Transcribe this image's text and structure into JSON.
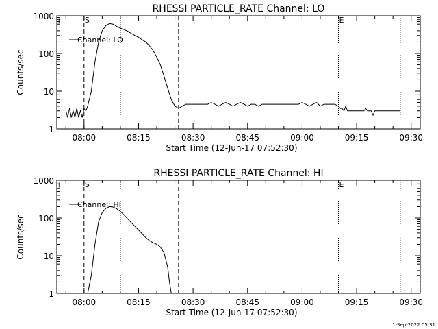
{
  "colors": {
    "background": "#ffffff",
    "ink": "#000000"
  },
  "footer": {
    "date_stamp": "1-Sep-2022 05:31"
  },
  "chart_data": [
    {
      "type": "line",
      "title": "RHESSI PARTICLE_RATE Channel: LO",
      "xlabel": "Start Time (12-Jun-17 07:52:30)",
      "ylabel": "Counts/sec",
      "y_scale": "log",
      "ylim": [
        1,
        1000
      ],
      "y_ticks": [
        1,
        10,
        100,
        1000
      ],
      "y_tick_labels": [
        "1",
        "10",
        "100",
        "1000"
      ],
      "x_range": [
        "07:52:30",
        "09:32:30"
      ],
      "x_ticks": [
        "08:00",
        "08:15",
        "08:30",
        "08:45",
        "09:00",
        "09:15",
        "09:30"
      ],
      "legend": {
        "label": "Channel: LO",
        "placement": "top-left"
      },
      "markers": [
        {
          "time": "08:00:00",
          "style": "dashed",
          "label": "S"
        },
        {
          "time": "08:10:00",
          "style": "dotted",
          "label": ""
        },
        {
          "time": "08:26:00",
          "style": "dashed",
          "label": ""
        },
        {
          "time": "09:10:00",
          "style": "dotted",
          "label": "E"
        },
        {
          "time": "09:27:00",
          "style": "dotted",
          "label": ""
        }
      ],
      "series": [
        {
          "name": "Channel: LO",
          "points": [
            [
              "07:55:00",
              3
            ],
            [
              "07:55:30",
              2
            ],
            [
              "07:56:00",
              3.5
            ],
            [
              "07:56:30",
              2
            ],
            [
              "07:57:00",
              3
            ],
            [
              "07:57:30",
              2
            ],
            [
              "07:58:00",
              3.5
            ],
            [
              "07:58:30",
              2
            ],
            [
              "07:59:00",
              3
            ],
            [
              "07:59:30",
              2
            ],
            [
              "08:00:00",
              3.5
            ],
            [
              "08:00:30",
              3
            ],
            [
              "08:01:00",
              4
            ],
            [
              "08:02:00",
              10
            ],
            [
              "08:03:00",
              60
            ],
            [
              "08:04:00",
              200
            ],
            [
              "08:05:00",
              400
            ],
            [
              "08:06:00",
              550
            ],
            [
              "08:07:00",
              620
            ],
            [
              "08:08:00",
              600
            ],
            [
              "08:09:00",
              520
            ],
            [
              "08:10:00",
              470
            ],
            [
              "08:11:00",
              430
            ],
            [
              "08:12:00",
              390
            ],
            [
              "08:13:00",
              340
            ],
            [
              "08:14:00",
              300
            ],
            [
              "08:15:00",
              270
            ],
            [
              "08:16:00",
              230
            ],
            [
              "08:17:00",
              200
            ],
            [
              "08:18:00",
              160
            ],
            [
              "08:19:00",
              120
            ],
            [
              "08:20:00",
              80
            ],
            [
              "08:21:00",
              50
            ],
            [
              "08:22:00",
              25
            ],
            [
              "08:23:00",
              12
            ],
            [
              "08:24:00",
              6
            ],
            [
              "08:25:00",
              4
            ],
            [
              "08:26:00",
              3.5
            ],
            [
              "08:27:00",
              4
            ],
            [
              "08:28:00",
              4.5
            ],
            [
              "08:30:00",
              4.5
            ],
            [
              "08:31:00",
              4.5
            ],
            [
              "08:32:00",
              4.5
            ],
            [
              "08:33:00",
              4.5
            ],
            [
              "08:34:00",
              4.5
            ],
            [
              "08:35:00",
              5
            ],
            [
              "08:36:00",
              4.5
            ],
            [
              "08:37:00",
              4
            ],
            [
              "08:38:00",
              4.5
            ],
            [
              "08:39:00",
              5
            ],
            [
              "08:40:00",
              4.5
            ],
            [
              "08:41:00",
              4
            ],
            [
              "08:42:00",
              4.5
            ],
            [
              "08:43:00",
              5
            ],
            [
              "08:44:00",
              4.5
            ],
            [
              "08:45:00",
              4
            ],
            [
              "08:46:00",
              4.5
            ],
            [
              "08:47:00",
              4.5
            ],
            [
              "08:48:00",
              4
            ],
            [
              "08:49:00",
              4.5
            ],
            [
              "08:50:00",
              4.5
            ],
            [
              "08:51:00",
              4.5
            ],
            [
              "08:52:00",
              4.5
            ],
            [
              "08:53:00",
              4.5
            ],
            [
              "08:54:00",
              4.5
            ],
            [
              "08:55:00",
              4.5
            ],
            [
              "08:56:00",
              4.5
            ],
            [
              "08:57:00",
              4.5
            ],
            [
              "08:58:00",
              4.5
            ],
            [
              "08:59:00",
              4.5
            ],
            [
              "09:00:00",
              5
            ],
            [
              "09:01:00",
              4.5
            ],
            [
              "09:02:00",
              4
            ],
            [
              "09:03:00",
              4.5
            ],
            [
              "09:04:00",
              5
            ],
            [
              "09:05:00",
              4
            ],
            [
              "09:06:00",
              4.5
            ],
            [
              "09:07:00",
              4.5
            ],
            [
              "09:08:00",
              4.5
            ],
            [
              "09:09:00",
              4.5
            ],
            [
              "09:10:00",
              4
            ],
            [
              "09:10:30",
              3.5
            ],
            [
              "09:11:00",
              3.5
            ],
            [
              "09:11:30",
              3
            ],
            [
              "09:12:00",
              4
            ],
            [
              "09:12:30",
              3
            ],
            [
              "09:13:00",
              3
            ],
            [
              "09:14:00",
              3
            ],
            [
              "09:15:00",
              3
            ],
            [
              "09:16:00",
              3
            ],
            [
              "09:17:00",
              3
            ],
            [
              "09:17:30",
              3.5
            ],
            [
              "09:18:00",
              3
            ],
            [
              "09:19:00",
              3
            ],
            [
              "09:19:30",
              2.3
            ],
            [
              "09:20:00",
              3
            ],
            [
              "09:21:00",
              3
            ],
            [
              "09:22:00",
              3
            ],
            [
              "09:23:00",
              3
            ],
            [
              "09:24:00",
              3
            ],
            [
              "09:25:00",
              3
            ],
            [
              "09:26:00",
              3
            ],
            [
              "09:27:00",
              3
            ]
          ]
        }
      ]
    },
    {
      "type": "line",
      "title": "RHESSI PARTICLE_RATE Channel: HI",
      "xlabel": "Start Time (12-Jun-17 07:52:30)",
      "ylabel": "Counts/sec",
      "y_scale": "log",
      "ylim": [
        1,
        1000
      ],
      "y_ticks": [
        1,
        10,
        100,
        1000
      ],
      "y_tick_labels": [
        "1",
        "10",
        "100",
        "1000"
      ],
      "x_range": [
        "07:52:30",
        "09:32:30"
      ],
      "x_ticks": [
        "08:00",
        "08:15",
        "08:30",
        "08:45",
        "09:00",
        "09:15",
        "09:30"
      ],
      "legend": {
        "label": "Channel: HI",
        "placement": "top-left"
      },
      "markers": [
        {
          "time": "08:00:00",
          "style": "dashed",
          "label": "S"
        },
        {
          "time": "08:10:00",
          "style": "dotted",
          "label": ""
        },
        {
          "time": "08:26:00",
          "style": "dashed",
          "label": ""
        },
        {
          "time": "09:10:00",
          "style": "dotted",
          "label": "E"
        },
        {
          "time": "09:27:00",
          "style": "dotted",
          "label": ""
        }
      ],
      "series": [
        {
          "name": "Channel: HI",
          "points": [
            [
              "08:01:00",
              1
            ],
            [
              "08:02:00",
              3
            ],
            [
              "08:03:00",
              20
            ],
            [
              "08:04:00",
              80
            ],
            [
              "08:05:00",
              140
            ],
            [
              "08:06:00",
              180
            ],
            [
              "08:07:00",
              200
            ],
            [
              "08:08:00",
              195
            ],
            [
              "08:09:00",
              175
            ],
            [
              "08:10:00",
              150
            ],
            [
              "08:11:00",
              120
            ],
            [
              "08:12:00",
              95
            ],
            [
              "08:13:00",
              75
            ],
            [
              "08:14:00",
              60
            ],
            [
              "08:15:00",
              48
            ],
            [
              "08:16:00",
              38
            ],
            [
              "08:17:00",
              30
            ],
            [
              "08:18:00",
              25
            ],
            [
              "08:19:00",
              22
            ],
            [
              "08:20:00",
              20
            ],
            [
              "08:21:00",
              17
            ],
            [
              "08:22:00",
              12
            ],
            [
              "08:23:00",
              5
            ],
            [
              "08:23:30",
              2
            ],
            [
              "08:24:00",
              1
            ]
          ]
        }
      ]
    }
  ]
}
